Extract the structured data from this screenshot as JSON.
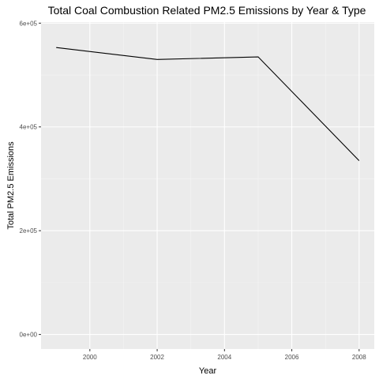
{
  "chart_data": {
    "type": "line",
    "title": "Total Coal Combustion Related PM2.5 Emissions by Year & Type",
    "xlabel": "Year",
    "ylabel": "Total PM2.5 Emissions",
    "x": [
      1999,
      2002,
      2005,
      2008
    ],
    "series": [
      {
        "values": [
          553000,
          530000,
          535000,
          335000
        ]
      }
    ],
    "xlim": [
      1998.55,
      2008.45
    ],
    "ylim": [
      -28000,
      602000
    ],
    "xticks": [
      2000,
      2002,
      2004,
      2006,
      2008
    ],
    "xtick_labels": [
      "2000",
      "2002",
      "2004",
      "2006",
      "2008"
    ],
    "yticks": [
      0,
      200000,
      400000,
      600000
    ],
    "ytick_labels": [
      "0e+00",
      "2e+05",
      "4e+05",
      "6e+05"
    ],
    "grid": true,
    "colors": {
      "panel_background": "#ebebeb",
      "grid_major": "#ffffff",
      "grid_minor": "#f5f5f5",
      "line": "#000000",
      "tick_text": "#4d4d4d",
      "tick_mark": "#333333"
    }
  }
}
